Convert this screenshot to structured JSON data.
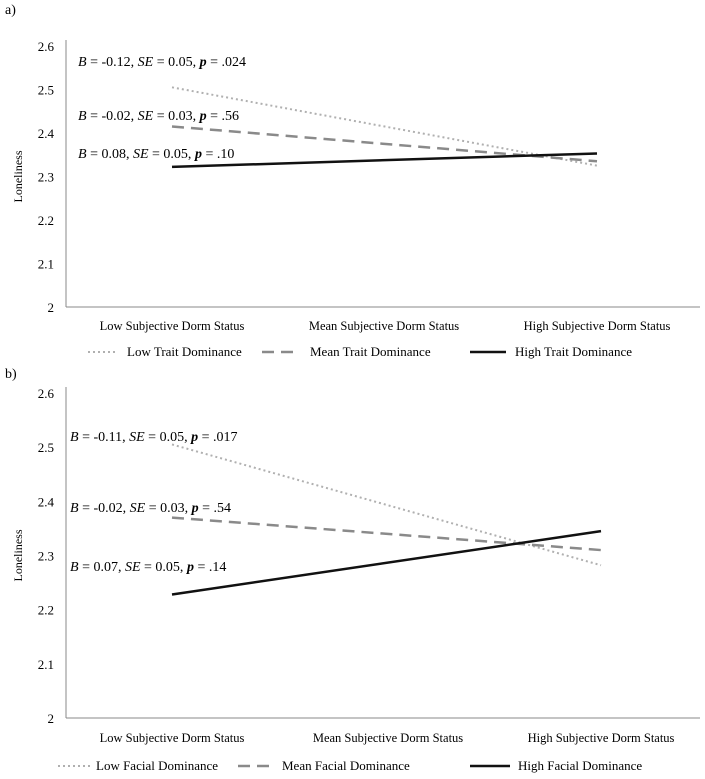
{
  "chart_data": [
    {
      "type": "line",
      "panel_label": "a)",
      "ylabel": "Loneliness",
      "ylim": [
        2,
        2.6
      ],
      "yticks": [
        "2",
        "2.1",
        "2.2",
        "2.3",
        "2.4",
        "2.5",
        "2.6"
      ],
      "categories": [
        "Low Subjective Dorm Status",
        "Mean Subjective Dorm Status",
        "High Subjective Dorm Status"
      ],
      "series": [
        {
          "name": "Low Trait Dominance",
          "x": [
            0,
            2
          ],
          "values": [
            2.505,
            2.325
          ],
          "color": "#b0b0b0",
          "style": "dotted"
        },
        {
          "name": "Mean Trait Dominance",
          "x": [
            0,
            2
          ],
          "values": [
            2.415,
            2.335
          ],
          "color": "#8a8a8a",
          "style": "dashed"
        },
        {
          "name": "High Trait Dominance",
          "x": [
            0,
            2
          ],
          "values": [
            2.322,
            2.353
          ],
          "color": "#111111",
          "style": "solid"
        }
      ],
      "annotations": [
        {
          "B": "-0.12",
          "SE": "0.05",
          "p": ".024"
        },
        {
          "B": "-0.02",
          "SE": "0.03",
          "p": ".56"
        },
        {
          "B": "0.08",
          "SE": "0.05",
          "p": ".10"
        }
      ],
      "legend_position": "bottom",
      "grid": false
    },
    {
      "type": "line",
      "panel_label": "b)",
      "ylabel": "Loneliness",
      "ylim": [
        2,
        2.6
      ],
      "yticks": [
        "2",
        "2.1",
        "2.2",
        "2.3",
        "2.4",
        "2.5",
        "2.6"
      ],
      "categories": [
        "Low Subjective Dorm Status",
        "Mean Subjective Dorm Status",
        "High Subjective Dorm Status"
      ],
      "series": [
        {
          "name": "Low Facial Dominance",
          "x": [
            0,
            2
          ],
          "values": [
            2.505,
            2.282
          ],
          "color": "#b0b0b0",
          "style": "dotted"
        },
        {
          "name": "Mean Facial Dominance",
          "x": [
            0,
            2
          ],
          "values": [
            2.37,
            2.31
          ],
          "color": "#8a8a8a",
          "style": "dashed"
        },
        {
          "name": "High Facial Dominance",
          "x": [
            0,
            2
          ],
          "values": [
            2.228,
            2.345
          ],
          "color": "#111111",
          "style": "solid"
        }
      ],
      "annotations": [
        {
          "B": "-0.11",
          "SE": "0.05",
          "p": ".017"
        },
        {
          "B": "-0.02",
          "SE": "0.03",
          "p": ".54"
        },
        {
          "B": "0.07",
          "SE": "0.05",
          "p": ".14"
        }
      ],
      "legend_position": "bottom",
      "grid": false
    }
  ]
}
